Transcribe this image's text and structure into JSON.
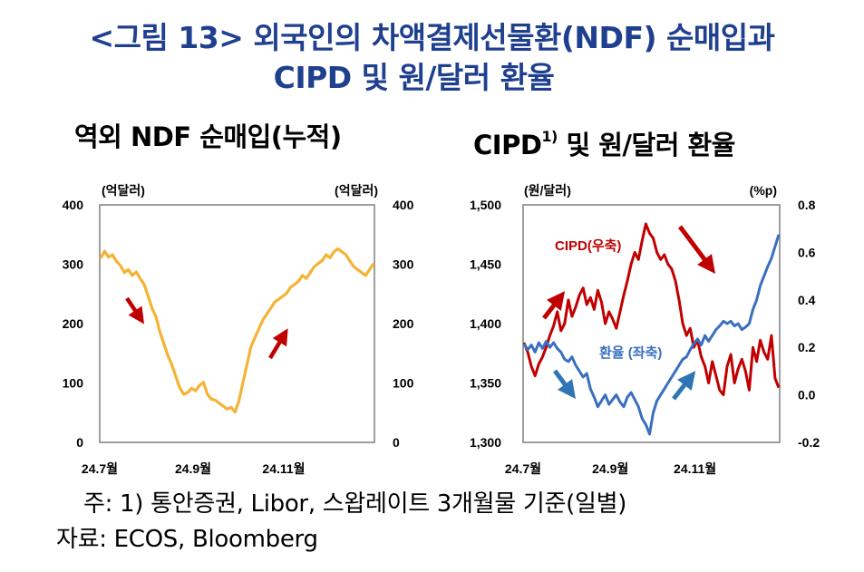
{
  "figure_title": {
    "line1": "<그림 13> 외국인의 차액결제선물환(NDF) 순매입과",
    "line2": "CIPD 및 원/달러 환율"
  },
  "colors": {
    "title": "#1f3f8f",
    "ndf": "#f5b335",
    "cipd": "#c00000",
    "fx": "#3a6fbf",
    "arrow_red": "#c00000",
    "arrow_blue": "#2e75b6"
  },
  "chart_data": [
    {
      "type": "line",
      "title": "역외 NDF 순매입(누적)",
      "left_unit": "(억달러)",
      "right_unit": "(억달러)",
      "ylim": [
        0,
        400
      ],
      "yticks": [
        "0",
        "100",
        "200",
        "300",
        "400"
      ],
      "xticks": [
        "24.7월",
        "24.9월",
        "24.11월"
      ],
      "series": [
        {
          "name": "역외 NDF 순매입",
          "values": [
            310,
            322,
            312,
            316,
            305,
            298,
            286,
            291,
            281,
            287,
            276,
            266,
            247,
            226,
            211,
            186,
            166,
            146,
            131,
            111,
            92,
            81,
            84,
            91,
            87,
            96,
            101,
            81,
            73,
            71,
            66,
            61,
            56,
            59,
            51,
            71,
            101,
            131,
            161,
            176,
            191,
            206,
            216,
            226,
            236,
            241,
            246,
            251,
            261,
            266,
            271,
            281,
            276,
            286,
            296,
            301,
            306,
            316,
            311,
            321,
            326,
            321,
            316,
            306,
            296,
            291,
            286,
            281,
            291,
            301
          ]
        }
      ],
      "arrows": [
        "down",
        "up"
      ]
    },
    {
      "type": "line",
      "title": "CIPD",
      "title_note": "1)",
      "title_rest": "및 원/달러 환율",
      "left_unit": "(원/달러)",
      "right_unit": "(%p)",
      "ylim_left": [
        1300,
        1500
      ],
      "ylim_right": [
        -0.2,
        0.8
      ],
      "yticks_left": [
        "1,300",
        "1,350",
        "1,400",
        "1,450",
        "1,500"
      ],
      "yticks_right": [
        "-0.2",
        "0.0",
        "0.2",
        "0.4",
        "0.6",
        "0.8"
      ],
      "xticks": [
        "24.7월",
        "24.9월",
        "24.11월"
      ],
      "series": [
        {
          "name": "환율 (좌축)",
          "axis": "left",
          "values": [
            1383,
            1378,
            1382,
            1376,
            1384,
            1379,
            1385,
            1380,
            1384,
            1379,
            1376,
            1370,
            1368,
            1372,
            1365,
            1360,
            1355,
            1358,
            1345,
            1338,
            1330,
            1335,
            1340,
            1332,
            1336,
            1340,
            1334,
            1330,
            1338,
            1342,
            1336,
            1330,
            1320,
            1315,
            1307,
            1325,
            1335,
            1340,
            1345,
            1350,
            1355,
            1360,
            1365,
            1370,
            1372,
            1378,
            1383,
            1387,
            1382,
            1390,
            1385,
            1390,
            1395,
            1398,
            1402,
            1400,
            1402,
            1398,
            1400,
            1395,
            1397,
            1400,
            1412,
            1420,
            1432,
            1440,
            1448,
            1455,
            1465,
            1475
          ]
        },
        {
          "name": "CIPD(우축)",
          "axis": "right",
          "values": [
            0.22,
            0.18,
            0.12,
            0.08,
            0.13,
            0.16,
            0.2,
            0.25,
            0.29,
            0.35,
            0.27,
            0.3,
            0.4,
            0.33,
            0.37,
            0.42,
            0.45,
            0.38,
            0.41,
            0.36,
            0.44,
            0.39,
            0.3,
            0.35,
            0.32,
            0.28,
            0.35,
            0.42,
            0.48,
            0.55,
            0.6,
            0.57,
            0.65,
            0.72,
            0.68,
            0.66,
            0.6,
            0.57,
            0.59,
            0.55,
            0.53,
            0.48,
            0.4,
            0.3,
            0.25,
            0.28,
            0.2,
            0.23,
            0.16,
            0.12,
            0.05,
            0.14,
            0.08,
            0.02,
            0.0,
            0.12,
            0.17,
            0.05,
            0.11,
            0.15,
            0.1,
            0.02,
            0.2,
            0.14,
            0.23,
            0.18,
            0.15,
            0.25,
            0.07,
            0.03
          ]
        }
      ],
      "labels": {
        "cipd": "CIPD(우축)",
        "fx": "환율 (좌축)"
      },
      "arrows": [
        "red-up",
        "red-down",
        "blue-down",
        "blue-up"
      ]
    }
  ],
  "notes": {
    "line1": "주: 1) 통안증권, Libor, 스왑레이트 3개월물 기준(일별)",
    "line2": "자료: ECOS, Bloomberg"
  }
}
